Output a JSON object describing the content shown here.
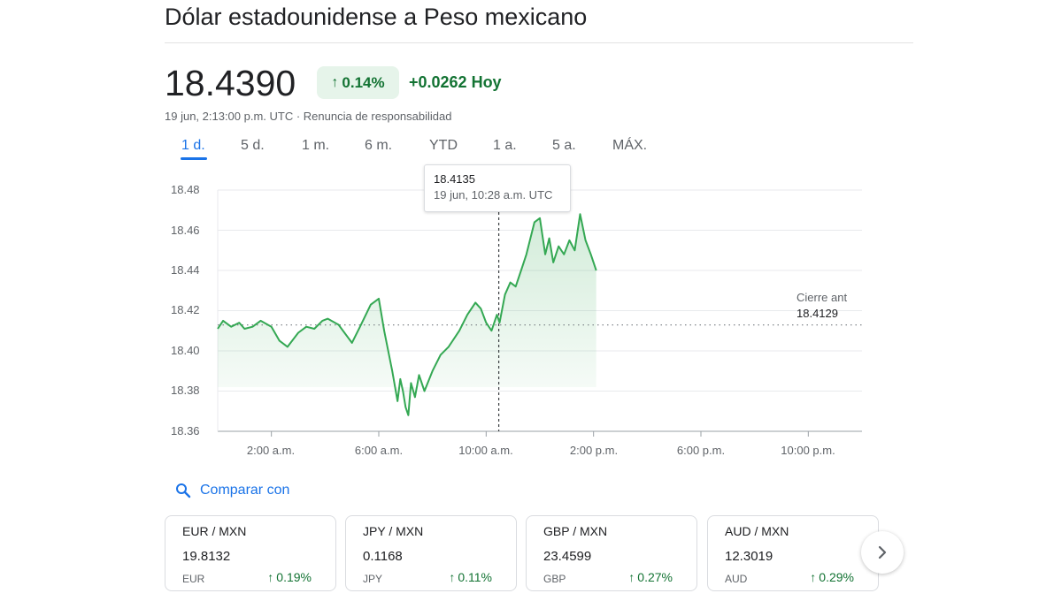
{
  "header": {
    "title": "Dólar estadounidense a Peso mexicano",
    "price": "18.4390",
    "pct_change": "0.14%",
    "abs_change": "+0.0262 Hoy",
    "timestamp": "19 jun, 2:13:00 p.m. UTC · Renuncia de responsabilidad"
  },
  "tabs": [
    {
      "label": "1 d.",
      "active": true
    },
    {
      "label": "5 d.",
      "active": false
    },
    {
      "label": "1 m.",
      "active": false
    },
    {
      "label": "6 m.",
      "active": false
    },
    {
      "label": "YTD",
      "active": false
    },
    {
      "label": "1 a.",
      "active": false
    },
    {
      "label": "5 a.",
      "active": false
    },
    {
      "label": "MÁX.",
      "active": false
    }
  ],
  "tooltip": {
    "value": "18.4135",
    "time": "19 jun, 10:28 a.m. UTC"
  },
  "prev_close": {
    "label": "Cierre ant",
    "value": "18.4129"
  },
  "compare": {
    "label": "Comparar con"
  },
  "cards": [
    {
      "pair": "EUR / MXN",
      "value": "19.8132",
      "currency": "EUR",
      "pct": "0.19%"
    },
    {
      "pair": "JPY / MXN",
      "value": "0.1168",
      "currency": "JPY",
      "pct": "0.11%"
    },
    {
      "pair": "GBP / MXN",
      "value": "23.4599",
      "currency": "GBP",
      "pct": "0.27%"
    },
    {
      "pair": "AUD / MXN",
      "value": "12.3019",
      "currency": "AUD",
      "pct": "0.29%"
    }
  ],
  "colors": {
    "up": "#137333",
    "line": "#34a853",
    "accent": "#1a73e8"
  },
  "icons": {
    "compare": "search-icon",
    "next": "chevron-right-icon",
    "up": "arrow-up-icon"
  },
  "chart_data": {
    "type": "line",
    "ylim": [
      18.36,
      18.48
    ],
    "y_ticks": [
      "18.48",
      "18.46",
      "18.44",
      "18.42",
      "18.40",
      "18.38",
      "18.36"
    ],
    "x_ticks": [
      "2:00 a.m.",
      "6:00 a.m.",
      "10:00 a.m.",
      "2:00 p.m.",
      "6:00 p.m.",
      "10:00 p.m."
    ],
    "xlim_hours": [
      0,
      24
    ],
    "prev_close": 18.4129,
    "series": [
      {
        "x": [
          0,
          0.2,
          0.5,
          0.8,
          1.0,
          1.3,
          1.6,
          2.0,
          2.3,
          2.6,
          3.0,
          3.3,
          3.6,
          3.9,
          4.1,
          4.5,
          5.0,
          5.3,
          5.7,
          6.0,
          6.2,
          6.5,
          6.7,
          6.8,
          6.9,
          7.0,
          7.1,
          7.2,
          7.35,
          7.5,
          7.7,
          8.0,
          8.3,
          8.6,
          9.0,
          9.3,
          9.6,
          9.8,
          10.0,
          10.2,
          10.4,
          10.5,
          10.7,
          10.9,
          11.1,
          11.3,
          11.5,
          11.8,
          12.0,
          12.2,
          12.35,
          12.5,
          12.7,
          12.9,
          13.1,
          13.3,
          13.5,
          13.7,
          13.9,
          14.1
        ],
        "y": [
          18.411,
          18.415,
          18.412,
          18.414,
          18.411,
          18.412,
          18.415,
          18.412,
          18.405,
          18.402,
          18.409,
          18.412,
          18.411,
          18.415,
          18.416,
          18.413,
          18.404,
          18.412,
          18.423,
          18.426,
          18.41,
          18.39,
          18.375,
          18.386,
          18.38,
          18.372,
          18.368,
          18.384,
          18.377,
          18.388,
          18.38,
          18.39,
          18.398,
          18.402,
          18.41,
          18.418,
          18.424,
          18.421,
          18.414,
          18.41,
          18.418,
          18.414,
          18.428,
          18.434,
          18.432,
          18.44,
          18.448,
          18.464,
          18.466,
          18.448,
          18.456,
          18.444,
          18.452,
          18.448,
          18.455,
          18.45,
          18.468,
          18.455,
          18.448,
          18.44
        ]
      }
    ],
    "crosshair_hour": 10.47
  }
}
